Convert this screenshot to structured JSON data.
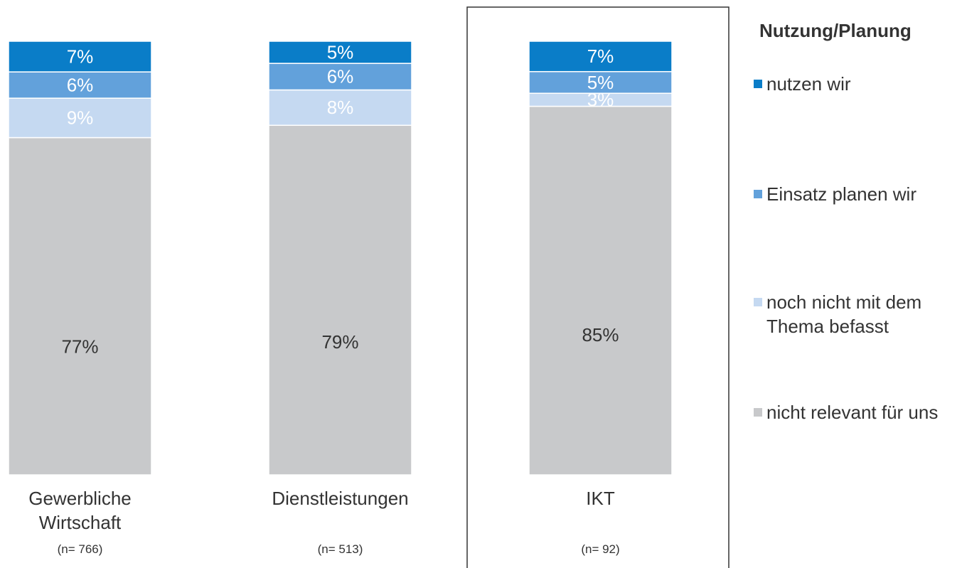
{
  "chart_data": {
    "type": "stacked_bar_100",
    "categories": [
      "Gewerbliche Wirtschaft",
      "Dienstleistungen",
      "IKT"
    ],
    "category_notes": [
      "(n= 766)",
      "(n= 513)",
      "(n= 92)"
    ],
    "legend_title": "Nutzung/Planung",
    "series": [
      {
        "name": "nicht relevant für uns",
        "color": "#c8c9cb",
        "label_color": "#333333",
        "values": [
          77,
          79,
          85
        ],
        "value_labels": [
          "77%",
          "79%",
          "85%"
        ]
      },
      {
        "name": "noch nicht mit dem Thema befasst",
        "color": "#c5d9f1",
        "label_color": "#ffffff",
        "values": [
          9,
          8,
          3
        ],
        "value_labels": [
          "9%",
          "8%",
          "3%"
        ]
      },
      {
        "name": "Einsatz planen wir",
        "color": "#62a1db",
        "label_color": "#ffffff",
        "values": [
          6,
          6,
          5
        ],
        "value_labels": [
          "6%",
          "6%",
          "5%"
        ]
      },
      {
        "name": "nutzen wir",
        "color": "#0a7dc8",
        "label_color": "#ffffff",
        "values": [
          7,
          5,
          7
        ],
        "value_labels": [
          "7%",
          "5%",
          "7%"
        ]
      }
    ]
  }
}
